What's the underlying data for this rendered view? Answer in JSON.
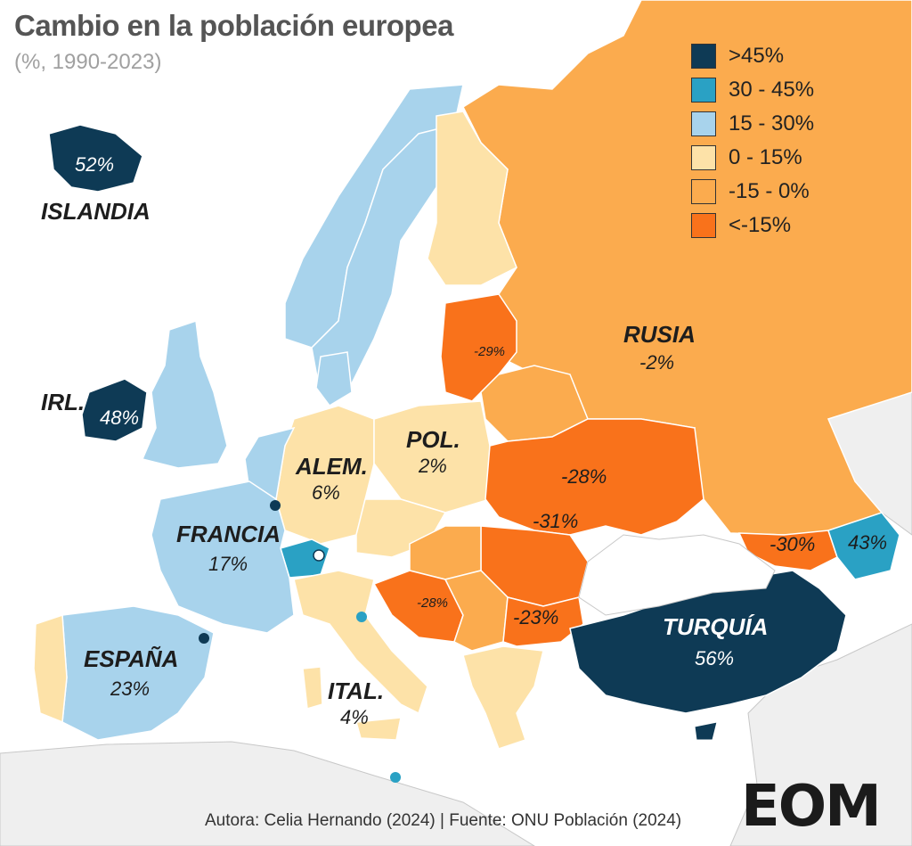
{
  "title": "Cambio en la población europea",
  "subtitle": "(%, 1990-2023)",
  "legend": [
    {
      "label": ">45%",
      "color": "#0e3a55"
    },
    {
      "label": "30 - 45%",
      "color": "#2aa1c4"
    },
    {
      "label": "15 - 30%",
      "color": "#a8d3ec"
    },
    {
      "label": "0 - 15%",
      "color": "#fde2a8"
    },
    {
      "label": "-15 - 0%",
      "color": "#fbab4e"
    },
    {
      "label": "<-15%",
      "color": "#f9721b"
    }
  ],
  "countries": {
    "islandia": {
      "name": "ISLANDIA",
      "value": "52%"
    },
    "irlanda": {
      "name": "IRL.",
      "value": "48%"
    },
    "alemania": {
      "name": "ALEM.",
      "value": "6%"
    },
    "polonia": {
      "name": "POL.",
      "value": "2%"
    },
    "francia": {
      "name": "FRANCIA",
      "value": "17%"
    },
    "espana": {
      "name": "ESPAÑA",
      "value": "23%"
    },
    "italia": {
      "name": "ITAL.",
      "value": "4%"
    },
    "rusia": {
      "name": "RUSIA",
      "value": "-2%"
    },
    "turquia": {
      "name": "TURQUÍA",
      "value": "56%"
    }
  },
  "small_labels": {
    "lithuania": "-29%",
    "ukraine": "-28%",
    "moldova": "-31%",
    "bulgaria": "-23%",
    "bosnia": "-28%",
    "georgia": "-30%",
    "azerbaijan": "43%"
  },
  "credit": "Autora: Celia Hernando (2024) | Fuente: ONU Población (2024)",
  "logo": "EOM"
}
